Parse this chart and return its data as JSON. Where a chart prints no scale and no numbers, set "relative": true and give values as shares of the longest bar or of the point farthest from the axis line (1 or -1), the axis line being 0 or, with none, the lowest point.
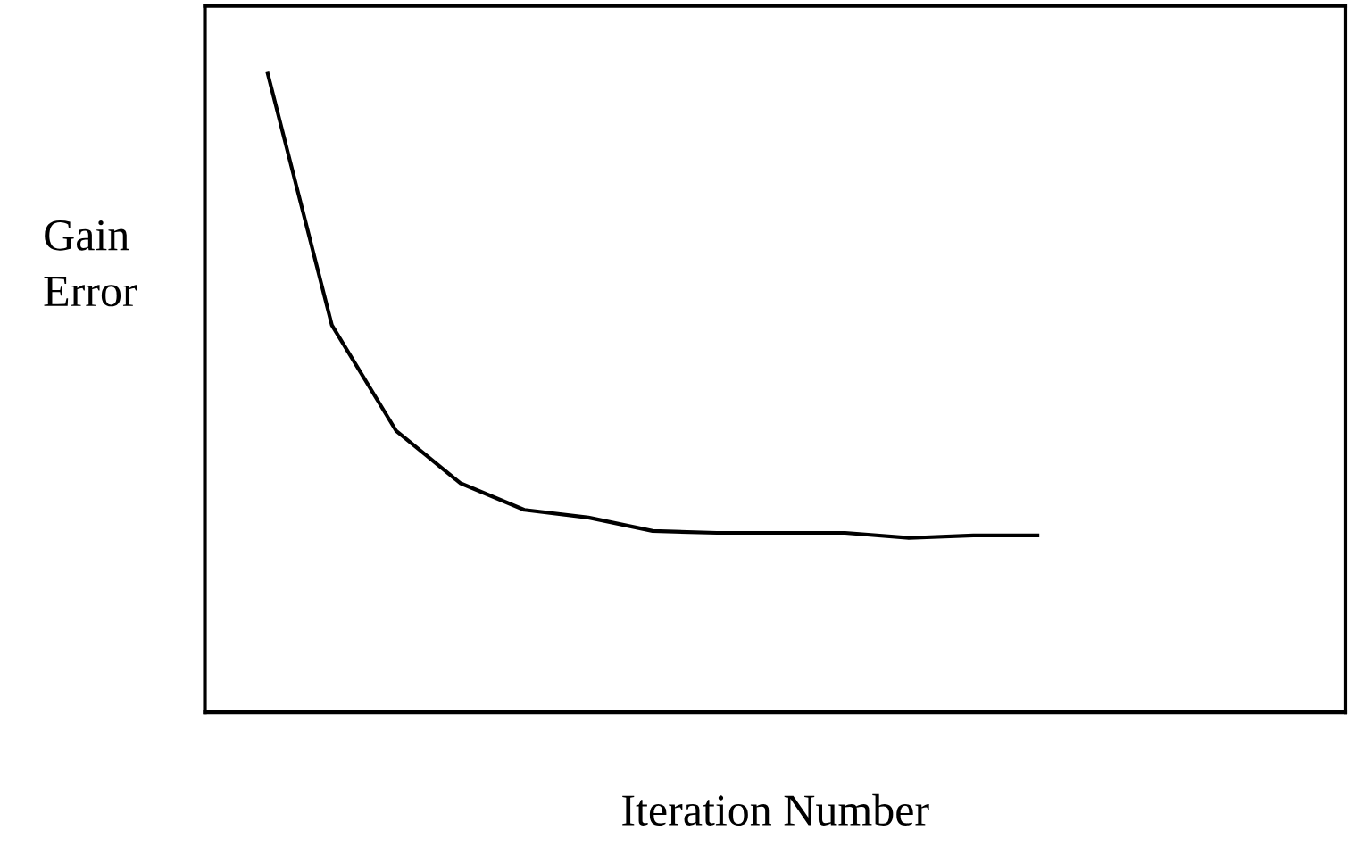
{
  "chart_data": {
    "type": "line",
    "xlabel": "Iteration Number",
    "ylabel": "Gain\nError",
    "relative": true,
    "categories": [
      null,
      null,
      null,
      null,
      null,
      null,
      null,
      null,
      null,
      null,
      null,
      null,
      null
    ],
    "series": [
      {
        "color": "#000000",
        "values": [
          1.0,
          0.606,
          0.441,
          0.359,
          0.317,
          0.305,
          0.284,
          0.281,
          0.281,
          0.281,
          0.273,
          0.277,
          0.277
        ]
      }
    ],
    "legend": false,
    "tick_labels": false,
    "marker": "none",
    "line_style": "solid"
  }
}
